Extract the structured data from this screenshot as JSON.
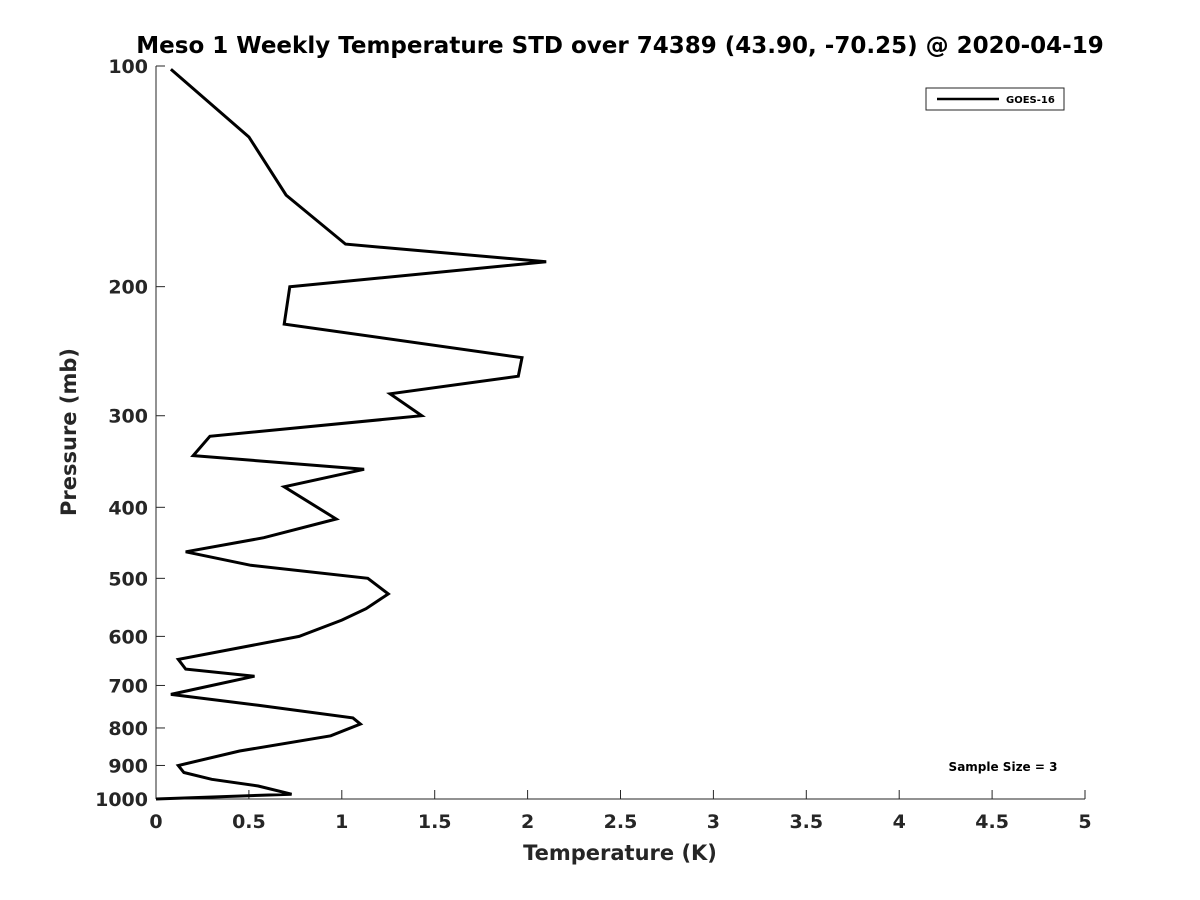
{
  "chart_data": {
    "type": "line",
    "title": "Meso 1 Weekly Temperature STD over 74389 (43.90, -70.25) @ 2020-04-19",
    "xlabel": "Temperature (K)",
    "ylabel": "Pressure (mb)",
    "xlim": [
      0,
      5
    ],
    "ylim": [
      100,
      1000
    ],
    "y_scale": "log",
    "y_direction": "reversed",
    "x_ticks": [
      "0",
      "0.5",
      "1",
      "1.5",
      "2",
      "2.5",
      "3",
      "3.5",
      "4",
      "4.5",
      "5"
    ],
    "y_ticks": [
      "100",
      "200",
      "300",
      "400",
      "500",
      "600",
      "700",
      "800",
      "900",
      "1000"
    ],
    "grid": false,
    "legend_position": "top-right",
    "annotation": "Sample Size = 3",
    "series": [
      {
        "name": "GOES-16",
        "color": "#000000",
        "points": [
          [
            0.08,
            101
          ],
          [
            0.5,
            125
          ],
          [
            0.7,
            150
          ],
          [
            1.02,
            175
          ],
          [
            2.1,
            185
          ],
          [
            0.72,
            200
          ],
          [
            0.69,
            225
          ],
          [
            1.97,
            250
          ],
          [
            1.95,
            265
          ],
          [
            1.26,
            280
          ],
          [
            1.43,
            300
          ],
          [
            0.29,
            320
          ],
          [
            0.2,
            340
          ],
          [
            1.12,
            355
          ],
          [
            0.69,
            375
          ],
          [
            0.97,
            415
          ],
          [
            0.58,
            440
          ],
          [
            0.16,
            460
          ],
          [
            0.51,
            480
          ],
          [
            1.14,
            500
          ],
          [
            1.25,
            525
          ],
          [
            1.13,
            550
          ],
          [
            1.0,
            570
          ],
          [
            0.77,
            600
          ],
          [
            0.12,
            645
          ],
          [
            0.16,
            665
          ],
          [
            0.53,
            680
          ],
          [
            0.3,
            700
          ],
          [
            0.08,
            720
          ],
          [
            0.55,
            745
          ],
          [
            1.06,
            775
          ],
          [
            1.1,
            790
          ],
          [
            0.94,
            820
          ],
          [
            0.45,
            860
          ],
          [
            0.12,
            900
          ],
          [
            0.15,
            920
          ],
          [
            0.3,
            940
          ],
          [
            0.55,
            960
          ],
          [
            0.73,
            985
          ],
          [
            0.0,
            1000
          ]
        ]
      }
    ]
  }
}
